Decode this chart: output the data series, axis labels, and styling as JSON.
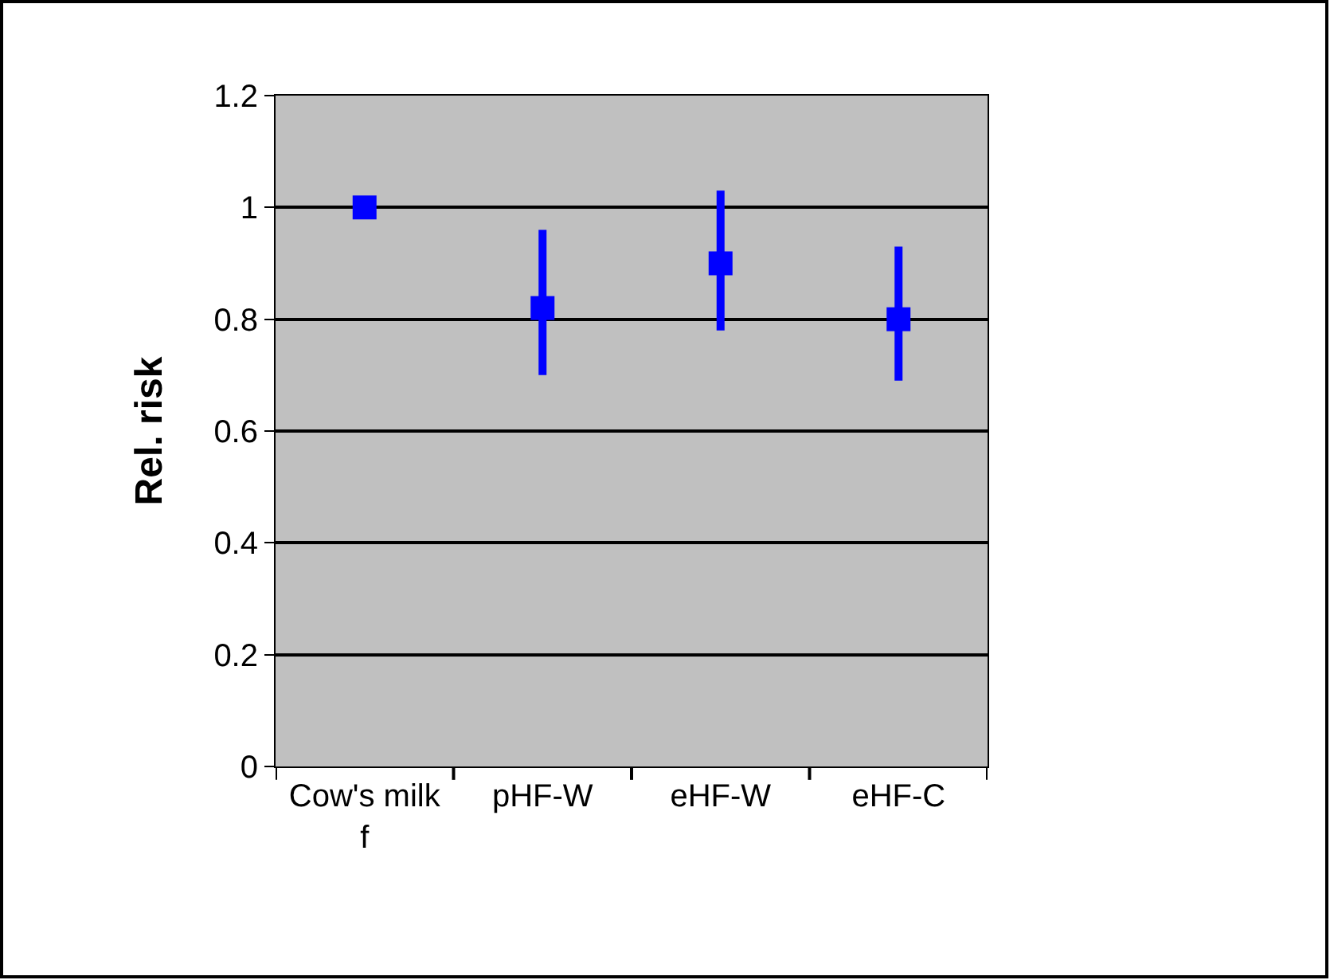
{
  "chart_data": {
    "type": "scatter",
    "ylabel": "Rel. risk",
    "categories": [
      "Cow's milk f",
      "pHF-W",
      "eHF-W",
      "eHF-C"
    ],
    "series": [
      {
        "color": "#0000ff",
        "values": [
          1.0,
          0.82,
          0.9,
          0.8
        ],
        "errors": [
          null,
          [
            0.7,
            0.96
          ],
          [
            0.78,
            1.03
          ],
          [
            0.69,
            0.93
          ]
        ]
      }
    ],
    "ylim": [
      0,
      1.2
    ],
    "yticks": [
      0,
      0.2,
      0.4,
      0.6,
      0.8,
      1,
      1.2
    ],
    "grid": "y",
    "marker": "square",
    "legend": false
  }
}
